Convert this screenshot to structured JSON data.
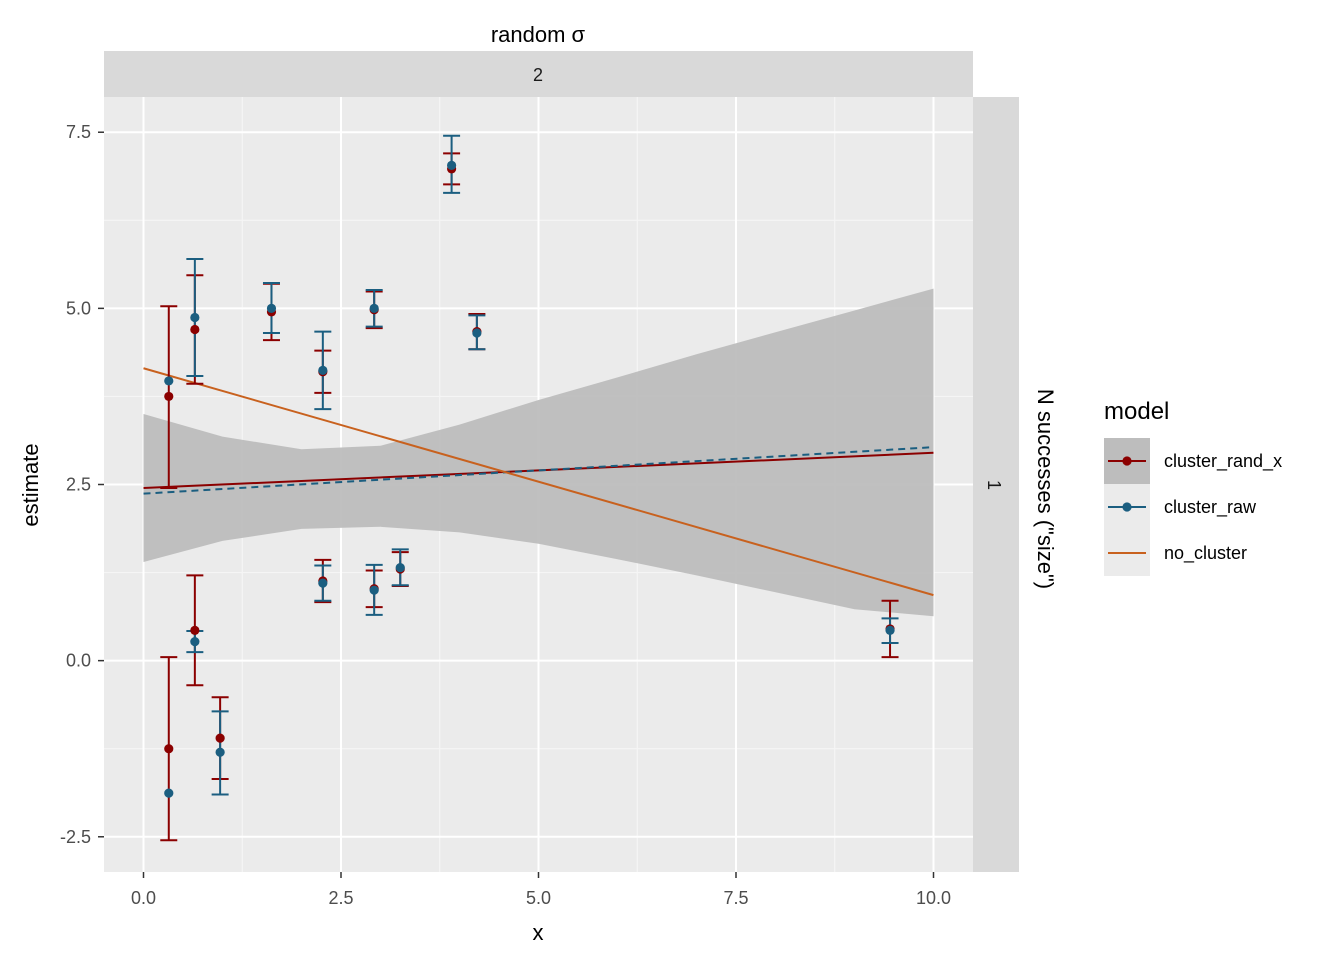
{
  "chart_data": {
    "type": "scatter",
    "facet": {
      "col_title": "random σ",
      "col_value": "2",
      "row_title": "N successes (\"size\")",
      "row_value": "1"
    },
    "xlabel": "x",
    "ylabel": "estimate",
    "xlim": [
      -0.5,
      10.5
    ],
    "ylim": [
      -3.0,
      8.0
    ],
    "x_ticks": [
      0.0,
      2.5,
      5.0,
      7.5,
      10.0
    ],
    "x_tick_labels": [
      "0.0",
      "2.5",
      "5.0",
      "7.5",
      "10.0"
    ],
    "y_ticks": [
      -2.5,
      0.0,
      2.5,
      5.0,
      7.5
    ],
    "y_tick_labels": [
      "-2.5",
      "0.0",
      "2.5",
      "5.0",
      "7.5"
    ],
    "grid": true,
    "legend": {
      "title": "model",
      "position": "right",
      "entries": [
        "cluster_rand_x",
        "cluster_raw",
        "no_cluster"
      ]
    },
    "series": [
      {
        "name": "cluster_rand_x",
        "color": "#8B0000",
        "points": [
          {
            "x": 0.32,
            "y": 3.75,
            "lo": 2.45,
            "hi": 5.03
          },
          {
            "x": 0.32,
            "y": -1.25,
            "lo": -2.55,
            "hi": 0.05
          },
          {
            "x": 0.65,
            "y": 4.7,
            "lo": 3.93,
            "hi": 5.47
          },
          {
            "x": 0.65,
            "y": 0.43,
            "lo": -0.35,
            "hi": 1.21
          },
          {
            "x": 0.97,
            "y": -1.1,
            "lo": -1.68,
            "hi": -0.52
          },
          {
            "x": 1.62,
            "y": 4.95,
            "lo": 4.55,
            "hi": 5.35
          },
          {
            "x": 2.27,
            "y": 4.1,
            "lo": 3.8,
            "hi": 4.4
          },
          {
            "x": 2.27,
            "y": 1.13,
            "lo": 0.83,
            "hi": 1.43
          },
          {
            "x": 2.92,
            "y": 4.98,
            "lo": 4.72,
            "hi": 5.24
          },
          {
            "x": 2.92,
            "y": 1.02,
            "lo": 0.76,
            "hi": 1.28
          },
          {
            "x": 3.25,
            "y": 1.3,
            "lo": 1.06,
            "hi": 1.54
          },
          {
            "x": 3.9,
            "y": 6.98,
            "lo": 6.76,
            "hi": 7.2
          },
          {
            "x": 4.22,
            "y": 4.67,
            "lo": 4.42,
            "hi": 4.92
          },
          {
            "x": 9.45,
            "y": 0.45,
            "lo": 0.05,
            "hi": 0.85
          }
        ],
        "fit": {
          "x": [
            0.0,
            10.0
          ],
          "y": [
            2.45,
            2.95
          ]
        }
      },
      {
        "name": "cluster_raw",
        "color": "#1B5E80",
        "points": [
          {
            "x": 0.32,
            "y": 3.97
          },
          {
            "x": 0.32,
            "y": -1.88
          },
          {
            "x": 0.65,
            "y": 4.87,
            "lo": 4.04,
            "hi": 5.7
          },
          {
            "x": 0.65,
            "y": 0.27,
            "lo": 0.12,
            "hi": 0.42
          },
          {
            "x": 0.97,
            "y": -1.3,
            "lo": -1.9,
            "hi": -0.72
          },
          {
            "x": 1.62,
            "y": 5.0,
            "lo": 4.65,
            "hi": 5.36
          },
          {
            "x": 2.27,
            "y": 4.12,
            "lo": 3.57,
            "hi": 4.67
          },
          {
            "x": 2.27,
            "y": 1.1,
            "lo": 0.85,
            "hi": 1.35
          },
          {
            "x": 2.92,
            "y": 5.0,
            "lo": 4.74,
            "hi": 5.26
          },
          {
            "x": 2.92,
            "y": 1.0,
            "lo": 0.65,
            "hi": 1.36
          },
          {
            "x": 3.25,
            "y": 1.32,
            "lo": 1.07,
            "hi": 1.58
          },
          {
            "x": 3.9,
            "y": 7.03,
            "lo": 6.64,
            "hi": 7.45
          },
          {
            "x": 4.22,
            "y": 4.65,
            "lo": 4.42,
            "hi": 4.9
          },
          {
            "x": 9.45,
            "y": 0.43,
            "lo": 0.25,
            "hi": 0.6
          }
        ],
        "fit": {
          "x": [
            0.0,
            10.0
          ],
          "y": [
            2.37,
            3.03
          ],
          "dash": true
        }
      },
      {
        "name": "no_cluster",
        "color": "#C8611E",
        "fit": {
          "x": [
            0.0,
            10.0
          ],
          "y": [
            4.15,
            0.93
          ]
        },
        "ribbon": {
          "x": [
            0.0,
            1.0,
            2.0,
            3.0,
            4.0,
            5.0,
            6.0,
            7.0,
            8.0,
            9.0,
            10.0
          ],
          "lower": [
            1.4,
            1.7,
            1.87,
            1.9,
            1.82,
            1.66,
            1.44,
            1.21,
            0.97,
            0.73,
            0.63
          ],
          "upper": [
            3.5,
            3.18,
            3.0,
            3.05,
            3.35,
            3.7,
            4.02,
            4.35,
            4.66,
            4.97,
            5.28
          ]
        }
      }
    ]
  }
}
